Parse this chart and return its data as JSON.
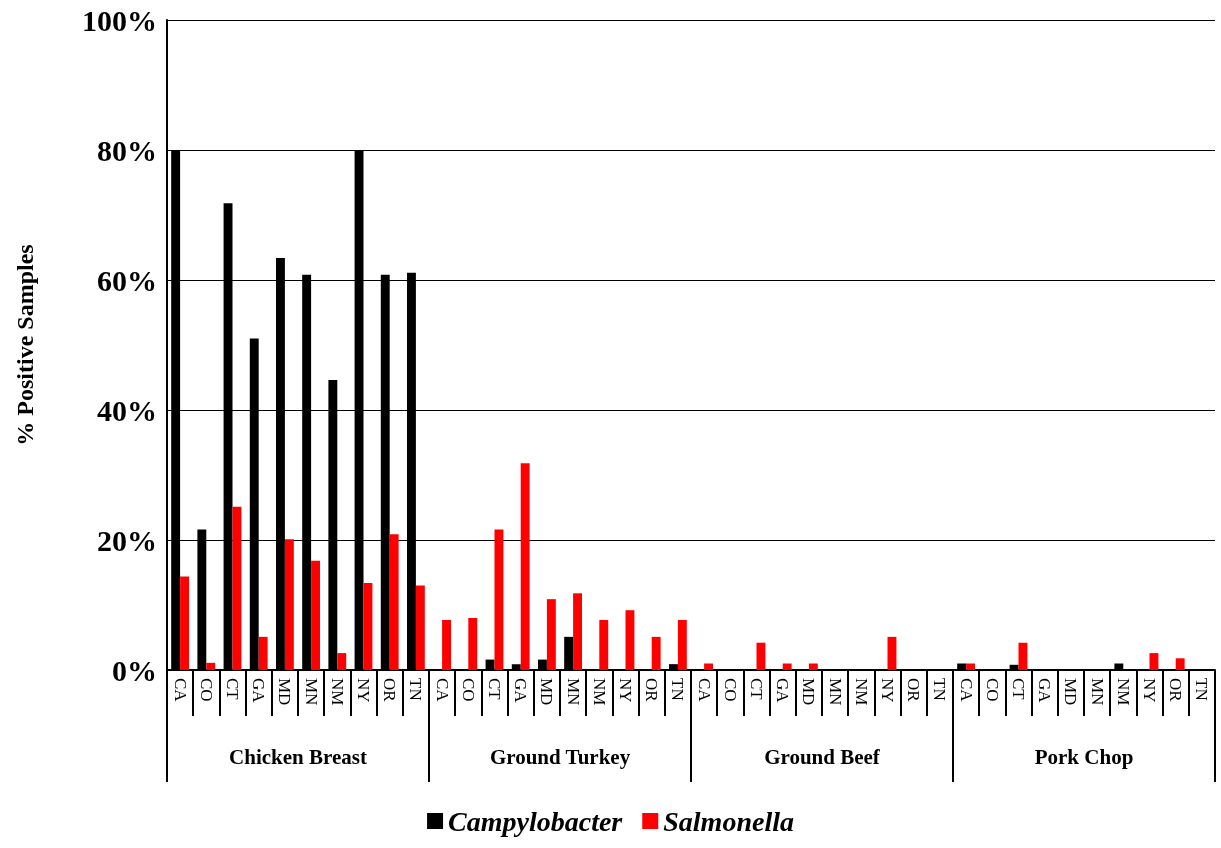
{
  "chart_data": {
    "type": "bar",
    "ylabel": "% Positive Samples",
    "categories": [
      "CA",
      "CO",
      "CT",
      "GA",
      "MD",
      "MN",
      "NM",
      "NY",
      "OR",
      "TN",
      "CA",
      "CO",
      "CT",
      "GA",
      "MD",
      "MN",
      "NM",
      "NY",
      "OR",
      "TN",
      "CA",
      "CO",
      "CT",
      "GA",
      "MD",
      "MN",
      "NM",
      "NY",
      "OR",
      "TN",
      "CA",
      "CO",
      "CT",
      "GA",
      "MD",
      "MN",
      "NM",
      "NY",
      "OR",
      "TN"
    ],
    "series": [
      {
        "name": "Campylobacter",
        "color": "#000000",
        "values": [
          80,
          21.6,
          71.8,
          51,
          63.4,
          60.8,
          44.6,
          80,
          60.8,
          61.1,
          0,
          0,
          1.6,
          0.9,
          1.6,
          5.1,
          0,
          0,
          0,
          0.9,
          0,
          0,
          0,
          0,
          0,
          0,
          0,
          0,
          0,
          0,
          1,
          0,
          0.8,
          0,
          0,
          0,
          1,
          0,
          0,
          0
        ]
      },
      {
        "name": "Salmonella",
        "color": "#ff0000",
        "values": [
          14.4,
          1.1,
          25.1,
          5.1,
          20.1,
          16.8,
          2.6,
          13.4,
          20.9,
          13,
          7.7,
          8,
          21.6,
          31.8,
          10.9,
          11.8,
          7.7,
          9.2,
          5.1,
          7.7,
          1,
          0,
          4.2,
          1,
          1,
          0,
          0,
          5.1,
          0,
          0,
          1,
          0,
          4.2,
          0,
          0,
          0,
          0,
          2.6,
          1.8,
          0
        ]
      }
    ],
    "annotations": [
      "Chicken Breast",
      "Ground Turkey",
      "Ground Beef",
      "Pork Chop"
    ],
    "ylim": [
      0,
      100
    ],
    "yticks": [
      {
        "value": 0,
        "label": "0%"
      },
      {
        "value": 20,
        "label": "20%"
      },
      {
        "value": 40,
        "label": "40%"
      },
      {
        "value": 60,
        "label": "60%"
      },
      {
        "value": 80,
        "label": "80%"
      },
      {
        "value": 100,
        "label": "100%"
      }
    ],
    "grid": "y",
    "legend": "bottom"
  }
}
